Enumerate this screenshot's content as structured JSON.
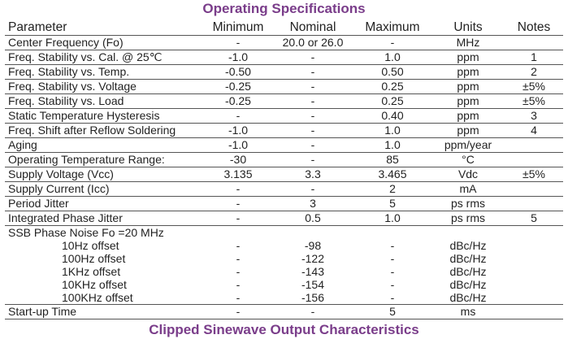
{
  "title": "Operating Specifications",
  "next_title": "Clipped Sinewave Output Characteristics",
  "columns": [
    "Parameter",
    "Minimum",
    "Nominal",
    "Maximum",
    "Units",
    "Notes"
  ],
  "rows": [
    [
      "Center Frequency (Fo)",
      "-",
      "20.0 or 26.0",
      "-",
      "MHz",
      ""
    ],
    [
      "Freq. Stability vs. Cal. @ 25℃",
      "-1.0",
      "-",
      "1.0",
      "ppm",
      "1"
    ],
    [
      "Freq. Stability vs. Temp.",
      "-0.50",
      "-",
      "0.50",
      "ppm",
      "2"
    ],
    [
      "Freq. Stability vs. Voltage",
      "-0.25",
      "-",
      "0.25",
      "ppm",
      "±5%"
    ],
    [
      "Freq. Stability vs. Load",
      "-0.25",
      "-",
      "0.25",
      "ppm",
      "±5%"
    ],
    [
      "Static Temperature Hysteresis",
      "-",
      "-",
      "0.40",
      "ppm",
      "3"
    ],
    [
      "Freq. Shift after Reflow Soldering",
      "-1.0",
      "-",
      "1.0",
      "ppm",
      "4"
    ],
    [
      "Aging",
      "-1.0",
      "-",
      "1.0",
      "ppm/year",
      ""
    ],
    [
      "Operating Temperature Range:",
      "-30",
      "-",
      "85",
      "°C",
      ""
    ],
    [
      "Supply Voltage (Vcc)",
      "3.135",
      "3.3",
      "3.465",
      "Vdc",
      "±5%"
    ],
    [
      "Supply Current (Icc)",
      "-",
      "-",
      "2",
      "mA",
      ""
    ],
    [
      "Period Jitter",
      "-",
      "3",
      "5",
      "ps rms",
      ""
    ],
    [
      "Integrated Phase Jitter",
      "-",
      "0.5",
      "1.0",
      "ps rms",
      "5"
    ]
  ],
  "phase_noise": {
    "label": "SSB Phase Noise Fo =20 MHz",
    "rows": [
      [
        "10Hz offset",
        "-",
        "-98",
        "-",
        "dBc/Hz",
        ""
      ],
      [
        "100Hz offset",
        "-",
        "-122",
        "-",
        "dBc/Hz",
        ""
      ],
      [
        "1KHz offset",
        "-",
        "-143",
        "-",
        "dBc/Hz",
        ""
      ],
      [
        "10KHz offset",
        "-",
        "-154",
        "-",
        "dBc/Hz",
        ""
      ],
      [
        "100KHz offset",
        "-",
        "-156",
        "-",
        "dBc/Hz",
        ""
      ]
    ]
  },
  "startup": [
    "Start-up Time",
    "-",
    "-",
    "5",
    "ms",
    ""
  ]
}
